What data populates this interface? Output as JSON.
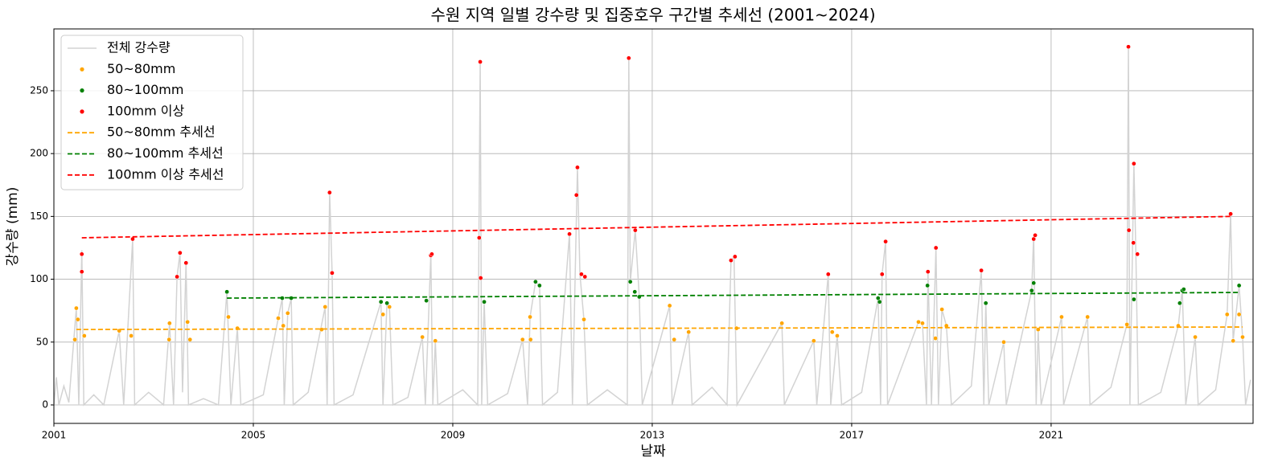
{
  "chart_data": {
    "type": "line",
    "title": "수원 지역 일별 강수량 및 집중호우 구간별 추세선 (2001~2024)",
    "xlabel": "날짜",
    "ylabel": "강수량 (mm)",
    "xlim": [
      2001,
      2025.05
    ],
    "xticks": [
      2001,
      2005,
      2009,
      2013,
      2017,
      2021
    ],
    "ylim": [
      -14.7,
      299.2
    ],
    "yticks": [
      0,
      50,
      100,
      150,
      200,
      250
    ],
    "grid": true,
    "legend": "upper left",
    "series": [
      {
        "name": "전체 강수량",
        "type": "line",
        "color": "#d3d3d3",
        "dashed": false,
        "x": [
          2001.0,
          2001.05,
          2001.1,
          2001.2,
          2001.3,
          2001.45,
          2001.5,
          2001.56,
          2001.6,
          2001.8,
          2002.0,
          2002.31,
          2002.4,
          2002.58,
          2002.62,
          2002.9,
          2003.2,
          2003.32,
          2003.4,
          2003.47,
          2003.53,
          2003.58,
          2003.65,
          2003.7,
          2004.0,
          2004.3,
          2004.47,
          2004.55,
          2004.68,
          2004.75,
          2005.2,
          2005.5,
          2005.58,
          2005.62,
          2005.69,
          2005.76,
          2005.8,
          2006.1,
          2006.44,
          2006.48,
          2006.53,
          2006.58,
          2006.62,
          2007.0,
          2007.56,
          2007.6,
          2007.68,
          2007.73,
          2007.8,
          2008.1,
          2008.39,
          2008.45,
          2008.56,
          2008.6,
          2008.65,
          2008.7,
          2009.2,
          2009.5,
          2009.55,
          2009.58,
          2009.63,
          2009.7,
          2010.1,
          2010.4,
          2010.5,
          2010.55,
          2010.66,
          2010.74,
          2010.8,
          2011.1,
          2011.34,
          2011.4,
          2011.5,
          2011.55,
          2011.63,
          2011.7,
          2012.1,
          2012.5,
          2012.53,
          2012.56,
          2012.66,
          2012.74,
          2012.8,
          2013.35,
          2013.4,
          2013.73,
          2013.8,
          2014.2,
          2014.5,
          2014.58,
          2014.64,
          2014.7,
          2015.6,
          2015.65,
          2016.24,
          2016.3,
          2016.53,
          2016.58,
          2016.71,
          2016.8,
          2017.2,
          2017.53,
          2017.58,
          2017.61,
          2017.68,
          2017.72,
          2018.34,
          2018.42,
          2018.5,
          2018.53,
          2018.6,
          2018.69,
          2018.74,
          2018.81,
          2018.9,
          2019.0,
          2019.4,
          2019.6,
          2019.65,
          2019.69,
          2019.75,
          2020.05,
          2020.1,
          2020.61,
          2020.65,
          2020.7,
          2020.74,
          2020.8,
          2021.21,
          2021.25,
          2021.73,
          2021.78,
          2022.2,
          2022.52,
          2022.55,
          2022.58,
          2022.66,
          2022.7,
          2022.75,
          2023.2,
          2023.55,
          2023.63,
          2023.7,
          2023.89,
          2023.95,
          2024.3,
          2024.53,
          2024.6,
          2024.65,
          2024.77,
          2024.84,
          2024.9,
          2025.0
        ],
        "values": [
          0,
          22,
          0,
          15,
          2,
          77,
          0,
          123,
          0,
          8,
          0,
          59,
          0,
          132,
          0,
          10,
          0,
          65,
          0,
          102,
          121,
          10,
          113,
          0,
          5,
          0,
          90,
          0,
          61,
          0,
          8,
          69,
          85,
          0,
          73,
          85,
          0,
          10,
          78,
          0,
          169,
          105,
          0,
          8,
          82,
          0,
          81,
          78,
          0,
          6,
          54,
          0,
          120,
          0,
          51,
          0,
          12,
          0,
          273,
          0,
          82,
          0,
          9,
          52,
          0,
          70,
          98,
          95,
          0,
          10,
          136,
          0,
          189,
          104,
          68,
          0,
          12,
          0,
          276,
          98,
          139,
          86,
          0,
          79,
          0,
          58,
          0,
          14,
          0,
          115,
          118,
          0,
          65,
          0,
          51,
          0,
          104,
          0,
          55,
          0,
          10,
          85,
          0,
          104,
          130,
          0,
          66,
          65,
          0,
          106,
          0,
          125,
          0,
          76,
          63,
          0,
          15,
          107,
          0,
          81,
          0,
          50,
          0,
          91,
          135,
          0,
          60,
          0,
          70,
          0,
          70,
          0,
          14,
          64,
          285,
          0,
          192,
          120,
          0,
          10,
          63,
          92,
          0,
          54,
          0,
          12,
          72,
          152,
          51,
          95,
          54,
          0,
          20
        ]
      },
      {
        "name": "50~80mm",
        "type": "scatter",
        "color": "#ffa500",
        "x": [
          2001.45,
          2001.48,
          2001.42,
          2001.61,
          2002.31,
          2002.55,
          2003.32,
          2003.31,
          2003.68,
          2003.73,
          2004.5,
          2004.68,
          2005.5,
          2005.6,
          2005.69,
          2006.44,
          2006.37,
          2007.6,
          2007.73,
          2008.39,
          2008.65,
          2010.55,
          2010.56,
          2010.4,
          2011.63,
          2013.35,
          2013.44,
          2013.73,
          2014.69,
          2015.6,
          2016.24,
          2016.61,
          2016.71,
          2018.34,
          2018.42,
          2018.68,
          2018.81,
          2018.9,
          2020.05,
          2020.74,
          2021.21,
          2021.73,
          2022.52,
          2023.55,
          2023.89,
          2024.53,
          2024.65,
          2024.77,
          2024.84
        ],
        "values": [
          77,
          68,
          52,
          55,
          59,
          55,
          65,
          52,
          66,
          52,
          70,
          61,
          69,
          63,
          73,
          78,
          60,
          72,
          78,
          54,
          51,
          70,
          52,
          52,
          68,
          79,
          52,
          58,
          61,
          65,
          51,
          58,
          55,
          66,
          65,
          53,
          76,
          63,
          50,
          60,
          70,
          70,
          64,
          63,
          54,
          72,
          51,
          72,
          54
        ]
      },
      {
        "name": "80~100mm",
        "type": "scatter",
        "color": "#008000",
        "x": [
          2004.47,
          2005.58,
          2005.76,
          2007.56,
          2007.68,
          2008.47,
          2009.63,
          2010.66,
          2010.74,
          2012.56,
          2012.65,
          2012.74,
          2017.53,
          2017.56,
          2018.52,
          2019.69,
          2020.65,
          2020.61,
          2022.66,
          2023.58,
          2023.63,
          2023.66,
          2024.77
        ],
        "values": [
          90,
          85,
          85,
          82,
          81,
          83,
          82,
          98,
          95,
          98,
          90,
          86,
          85,
          82,
          95,
          81,
          97,
          91,
          84,
          81,
          91,
          92,
          95
        ]
      },
      {
        "name": "100mm 이상",
        "type": "scatter",
        "color": "#ff0000",
        "x": [
          2001.56,
          2001.56,
          2002.58,
          2003.47,
          2003.53,
          2003.65,
          2006.53,
          2006.58,
          2008.56,
          2008.58,
          2009.55,
          2009.53,
          2009.56,
          2011.34,
          2011.5,
          2011.48,
          2011.58,
          2011.65,
          2012.53,
          2012.66,
          2014.58,
          2014.66,
          2016.53,
          2017.61,
          2017.68,
          2018.53,
          2018.69,
          2019.6,
          2020.65,
          2020.68,
          2022.55,
          2022.56,
          2022.66,
          2022.65,
          2022.73,
          2024.6
        ],
        "values": [
          120,
          106,
          132,
          102,
          121,
          113,
          169,
          105,
          119,
          120,
          273,
          133,
          101,
          136,
          189,
          167,
          104,
          102,
          276,
          139,
          115,
          118,
          104,
          104,
          130,
          106,
          125,
          107,
          132,
          135,
          285,
          139,
          192,
          129,
          120,
          152
        ]
      },
      {
        "name": "50~80mm 추세선",
        "type": "line",
        "color": "#ffa500",
        "dashed": true,
        "x": [
          2001.45,
          2024.84
        ],
        "values": [
          60,
          62
        ]
      },
      {
        "name": "80~100mm 추세선",
        "type": "line",
        "color": "#008000",
        "dashed": true,
        "x": [
          2004.47,
          2024.77
        ],
        "values": [
          85,
          89.5
        ]
      },
      {
        "name": "100mm 이상 추세선",
        "type": "line",
        "color": "#ff0000",
        "dashed": true,
        "x": [
          2001.56,
          2024.6
        ],
        "values": [
          133,
          150
        ]
      }
    ]
  }
}
